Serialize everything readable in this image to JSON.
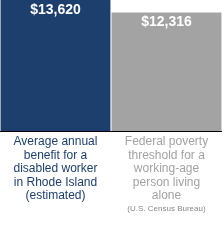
{
  "chart_data": {
    "type": "bar",
    "categories": [
      [
        "Average annual",
        "benefit for a",
        "disabled worker",
        "in Rhode Island",
        "(estimated)"
      ],
      [
        "Federal poverty",
        "threshold for a",
        "working-age",
        "person living",
        "alone"
      ]
    ],
    "values": [
      13620,
      12316
    ],
    "value_labels": [
      "$13,620",
      "$12,316"
    ],
    "colors": [
      "#1d3f6e",
      "#a3a3a3"
    ],
    "source": "(U.S. Census Bureau)",
    "ylim": [
      0,
      13620
    ],
    "grid": false,
    "tick_labels": false,
    "data_labels": true
  }
}
